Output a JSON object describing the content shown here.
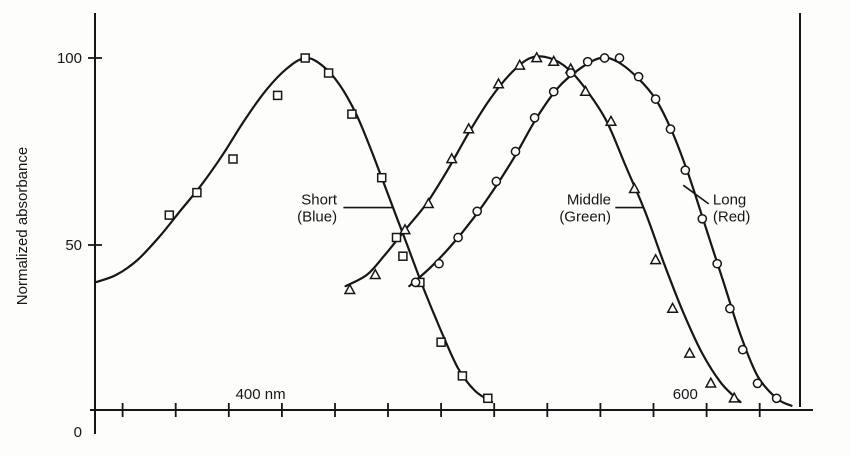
{
  "figure": {
    "background": "#fdfdfc",
    "ink": "#161616"
  },
  "chart_data": {
    "type": "line",
    "xlabel": "",
    "ylabel": "Normalized absorbance",
    "x_unit": "nm",
    "xlim": [
      322,
      654
    ],
    "ylim": [
      0,
      110
    ],
    "grid": false,
    "legend": "inline-annotations",
    "y_ticks": [
      {
        "value": 100,
        "label": "100",
        "tick": true
      },
      {
        "value": 50,
        "label": "50",
        "tick": true
      },
      {
        "value": 0,
        "label": "0",
        "tick": false
      }
    ],
    "x_axis_labels": [
      {
        "value": 400,
        "label": "400 nm"
      },
      {
        "value": 600,
        "label": "600"
      }
    ],
    "x_minor_ticks": [
      335,
      360,
      385,
      410,
      435,
      460,
      485,
      510,
      535,
      560,
      585,
      610,
      635
    ],
    "series": [
      {
        "name": "Short (Blue)",
        "marker": "square",
        "peak_nm": 421,
        "curve": [
          [
            322,
            40
          ],
          [
            332,
            42
          ],
          [
            342,
            46
          ],
          [
            352,
            52
          ],
          [
            362,
            59
          ],
          [
            372,
            66
          ],
          [
            382,
            74
          ],
          [
            392,
            83
          ],
          [
            402,
            91
          ],
          [
            412,
            97
          ],
          [
            421,
            100
          ],
          [
            429,
            98
          ],
          [
            437,
            93
          ],
          [
            445,
            85
          ],
          [
            453,
            74
          ],
          [
            461,
            62
          ],
          [
            469,
            50
          ],
          [
            477,
            38
          ],
          [
            485,
            27
          ],
          [
            493,
            17
          ],
          [
            501,
            11
          ],
          [
            509,
            8
          ]
        ],
        "markers": [
          [
            357,
            58
          ],
          [
            370,
            64
          ],
          [
            387,
            73
          ],
          [
            408,
            90
          ],
          [
            421,
            100
          ],
          [
            432,
            96
          ],
          [
            443,
            85
          ],
          [
            457,
            68
          ],
          [
            464,
            52
          ],
          [
            467,
            47
          ],
          [
            475,
            40
          ],
          [
            485,
            24
          ],
          [
            495,
            15
          ],
          [
            507,
            9
          ]
        ]
      },
      {
        "name": "Middle (Green)",
        "marker": "triangle",
        "peak_nm": 531,
        "curve": [
          [
            440,
            39
          ],
          [
            450,
            42
          ],
          [
            458,
            47
          ],
          [
            468,
            54
          ],
          [
            478,
            61
          ],
          [
            488,
            70
          ],
          [
            498,
            80
          ],
          [
            508,
            89
          ],
          [
            518,
            96
          ],
          [
            527,
            100
          ],
          [
            536,
            100
          ],
          [
            545,
            97
          ],
          [
            554,
            91
          ],
          [
            563,
            83
          ],
          [
            572,
            71
          ],
          [
            581,
            59
          ],
          [
            590,
            45
          ],
          [
            599,
            32
          ],
          [
            608,
            21
          ],
          [
            617,
            13
          ],
          [
            626,
            8
          ]
        ],
        "markers": [
          [
            442,
            38
          ],
          [
            454,
            42
          ],
          [
            468,
            54
          ],
          [
            479,
            61
          ],
          [
            490,
            73
          ],
          [
            498,
            81
          ],
          [
            512,
            93
          ],
          [
            522,
            98
          ],
          [
            530,
            100
          ],
          [
            538,
            99
          ],
          [
            546,
            97
          ],
          [
            553,
            91
          ],
          [
            565,
            83
          ],
          [
            576,
            65
          ],
          [
            586,
            46
          ],
          [
            594,
            33
          ],
          [
            602,
            21
          ],
          [
            612,
            13
          ],
          [
            623,
            9
          ]
        ]
      },
      {
        "name": "Long (Red)",
        "marker": "circle",
        "peak_nm": 563,
        "curve": [
          [
            470,
            39
          ],
          [
            480,
            44
          ],
          [
            490,
            50
          ],
          [
            500,
            57
          ],
          [
            510,
            65
          ],
          [
            520,
            74
          ],
          [
            530,
            84
          ],
          [
            540,
            92
          ],
          [
            550,
            97
          ],
          [
            560,
            100
          ],
          [
            568,
            99
          ],
          [
            577,
            95
          ],
          [
            586,
            89
          ],
          [
            594,
            80
          ],
          [
            602,
            68
          ],
          [
            610,
            54
          ],
          [
            618,
            40
          ],
          [
            626,
            26
          ],
          [
            634,
            15
          ],
          [
            643,
            9
          ],
          [
            650,
            7
          ]
        ],
        "markers": [
          [
            473,
            40
          ],
          [
            484,
            45
          ],
          [
            493,
            52
          ],
          [
            502,
            59
          ],
          [
            511,
            67
          ],
          [
            520,
            75
          ],
          [
            529,
            84
          ],
          [
            538,
            91
          ],
          [
            546,
            96
          ],
          [
            554,
            99
          ],
          [
            562,
            100
          ],
          [
            569,
            100
          ],
          [
            578,
            95
          ],
          [
            586,
            89
          ],
          [
            593,
            81
          ],
          [
            600,
            70
          ],
          [
            608,
            57
          ],
          [
            615,
            45
          ],
          [
            621,
            33
          ],
          [
            627,
            22
          ],
          [
            634,
            13
          ],
          [
            643,
            9
          ]
        ]
      }
    ],
    "annotations": [
      {
        "id": "short-blue",
        "lines": [
          "Short",
          "(Blue)"
        ],
        "anchor": "end",
        "tx": 436,
        "ty": 60,
        "leader": [
          [
            439,
            60
          ],
          [
            462,
            60
          ]
        ]
      },
      {
        "id": "middle-green",
        "lines": [
          "Middle",
          "(Green)"
        ],
        "anchor": "end",
        "tx": 565,
        "ty": 60,
        "leader": [
          [
            567,
            60
          ],
          [
            580,
            60
          ]
        ]
      },
      {
        "id": "long-red",
        "lines": [
          "Long",
          "(Red)"
        ],
        "anchor": "start",
        "tx": 613,
        "ty": 60,
        "leader": [
          [
            611,
            61
          ],
          [
            599,
            66
          ]
        ]
      }
    ]
  }
}
